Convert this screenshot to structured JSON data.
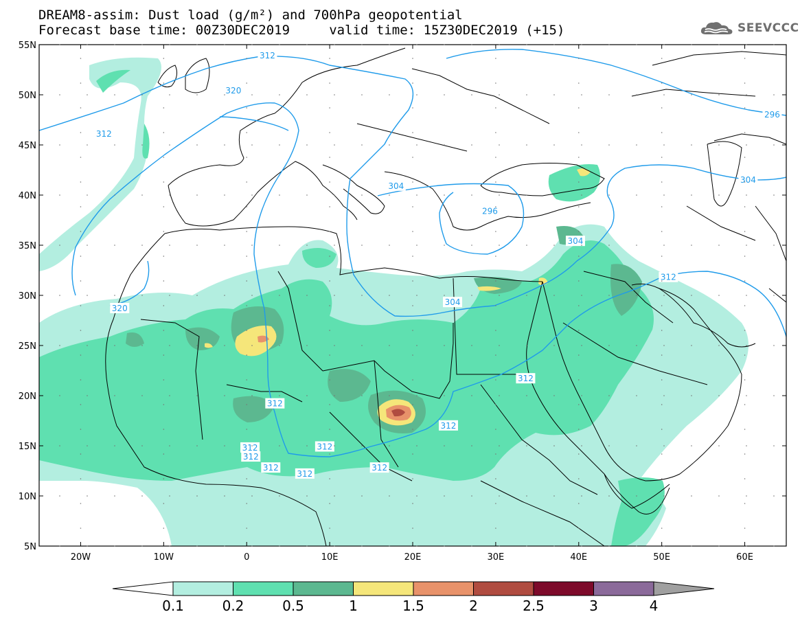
{
  "header": {
    "line1": "DREAM8-assim: Dust load (g/m²) and 700hPa geopotential",
    "line2": "Forecast base time: 00Z30DEC2019     valid time: 15Z30DEC2019 (+15)"
  },
  "logo": {
    "text": "SEEVCCC",
    "icon": "cloud-icon"
  },
  "map": {
    "lon_range": [
      -25,
      65
    ],
    "lat_range": [
      5,
      55
    ],
    "lon_ticks": [
      {
        "value": -20,
        "label": "20W"
      },
      {
        "value": -10,
        "label": "10W"
      },
      {
        "value": 0,
        "label": "0"
      },
      {
        "value": 10,
        "label": "10E"
      },
      {
        "value": 20,
        "label": "20E"
      },
      {
        "value": 30,
        "label": "30E"
      },
      {
        "value": 40,
        "label": "40E"
      },
      {
        "value": 50,
        "label": "50E"
      },
      {
        "value": 60,
        "label": "60E"
      }
    ],
    "lat_ticks": [
      {
        "value": 55,
        "label": "55N"
      },
      {
        "value": 50,
        "label": "50N"
      },
      {
        "value": 45,
        "label": "45N"
      },
      {
        "value": 40,
        "label": "40N"
      },
      {
        "value": 35,
        "label": "35N"
      },
      {
        "value": 30,
        "label": "30N"
      },
      {
        "value": 25,
        "label": "25N"
      },
      {
        "value": 20,
        "label": "20N"
      },
      {
        "value": 15,
        "label": "15N"
      },
      {
        "value": 10,
        "label": "10N"
      },
      {
        "value": 5,
        "label": "5N"
      }
    ],
    "contour_labels": [
      {
        "text": "312",
        "lon": 2.5,
        "lat": 53.9
      },
      {
        "text": "320",
        "lon": -1.6,
        "lat": 50.4
      },
      {
        "text": "312",
        "lon": -17.2,
        "lat": 46.1
      },
      {
        "text": "304",
        "lon": 18.0,
        "lat": 40.9
      },
      {
        "text": "296",
        "lon": 29.3,
        "lat": 38.4
      },
      {
        "text": "296",
        "lon": 63.3,
        "lat": 48.0
      },
      {
        "text": "304",
        "lon": 60.4,
        "lat": 41.5
      },
      {
        "text": "304",
        "lon": 39.6,
        "lat": 35.4
      },
      {
        "text": "312",
        "lon": 50.8,
        "lat": 31.8
      },
      {
        "text": "304",
        "lon": 24.8,
        "lat": 29.3
      },
      {
        "text": "312",
        "lon": 33.6,
        "lat": 21.7
      },
      {
        "text": "312",
        "lon": 3.4,
        "lat": 19.2
      },
      {
        "text": "312",
        "lon": 24.3,
        "lat": 17.0
      },
      {
        "text": "312",
        "lon": 0.4,
        "lat": 14.8
      },
      {
        "text": "312",
        "lon": 0.5,
        "lat": 13.9
      },
      {
        "text": "312",
        "lon": 9.4,
        "lat": 14.9
      },
      {
        "text": "312",
        "lon": 2.9,
        "lat": 12.8
      },
      {
        "text": "312",
        "lon": 7.0,
        "lat": 12.2
      },
      {
        "text": "312",
        "lon": 16.0,
        "lat": 12.8
      },
      {
        "text": "320",
        "lon": -15.3,
        "lat": 28.7
      }
    ]
  },
  "colorbar": {
    "colors": [
      "#b3eee0",
      "#5fe0b0",
      "#5cb890",
      "#f5e67a",
      "#e8926a",
      "#b04c40",
      "#7d0a2a",
      "#8b6a9a"
    ],
    "under_color": "#ffffff",
    "over_color": "#a0a0a0",
    "labels": [
      "0.1",
      "0.2",
      "0.5",
      "1",
      "1.5",
      "2",
      "2.5",
      "3",
      "4"
    ]
  }
}
